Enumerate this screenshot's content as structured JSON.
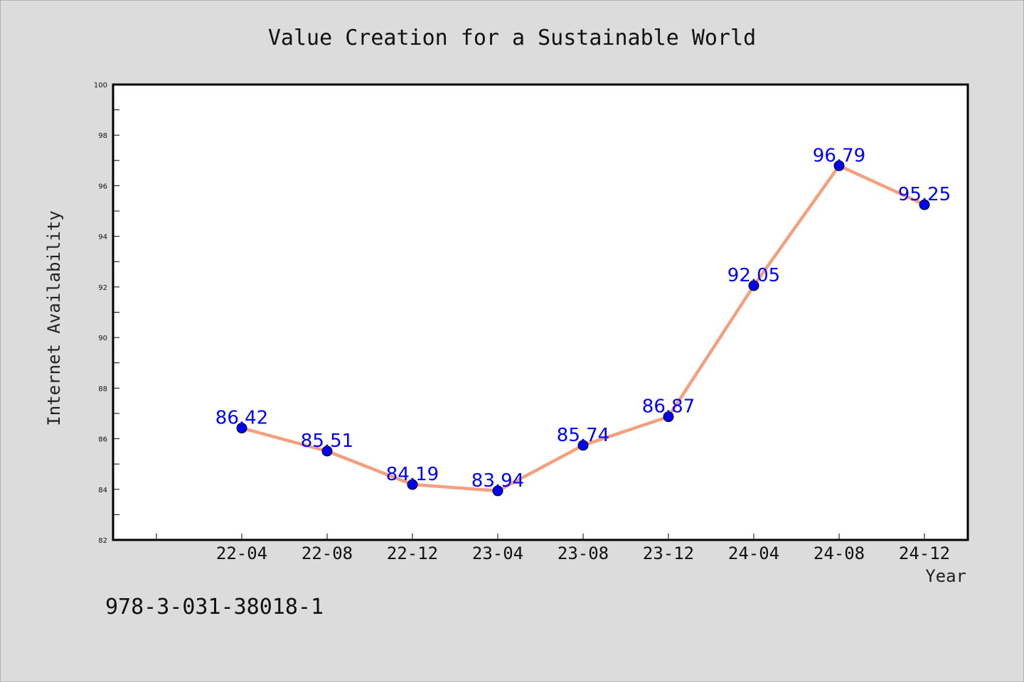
{
  "chart_data": {
    "type": "line",
    "title": "Value Creation for a Sustainable World",
    "xlabel": "Year",
    "ylabel": "Internet Availability",
    "categories": [
      "22-04",
      "22-08",
      "22-12",
      "23-04",
      "23-08",
      "23-12",
      "24-04",
      "24-08",
      "24-12"
    ],
    "series": [
      {
        "values": [
          86.42,
          85.51,
          84.19,
          83.94,
          85.74,
          86.87,
          92.05,
          96.79,
          95.25
        ]
      }
    ],
    "data_labels": [
      "86.42",
      "85.51",
      "84.19",
      "83.94",
      "85.74",
      "86.87",
      "92.05",
      "96.79",
      "95.25"
    ],
    "ylim": [
      82,
      100
    ],
    "yticks": [
      82,
      84,
      86,
      88,
      90,
      92,
      94,
      96,
      98,
      100
    ],
    "grid": false,
    "legend": "none",
    "colors": {
      "line": "#f4a07e",
      "marker": "#0000ee",
      "data_label": "#0000ff",
      "background": "#dcdcdc",
      "plot_background": "#ffffff"
    }
  },
  "footer": {
    "isbn": "978-3-031-38018-1"
  }
}
